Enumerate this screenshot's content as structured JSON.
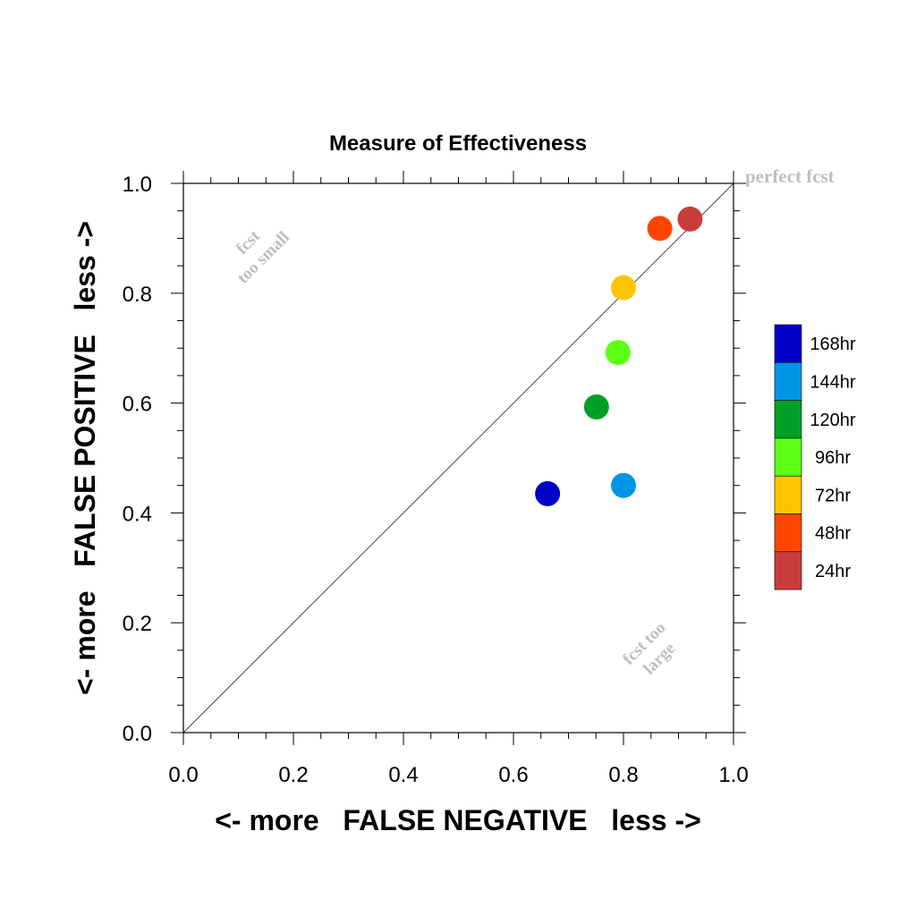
{
  "chart_data": {
    "type": "scatter",
    "title": "Measure of Effectiveness",
    "xlabel": "<- more   FALSE NEGATIVE   less ->",
    "ylabel": "<- more   FALSE POSITIVE   less ->",
    "xlim": [
      0.0,
      1.0
    ],
    "ylim": [
      0.0,
      1.0
    ],
    "xticks": [
      "0.0",
      "0.2",
      "0.4",
      "0.6",
      "0.8",
      "1.0"
    ],
    "yticks": [
      "0.0",
      "0.2",
      "0.4",
      "0.6",
      "0.8",
      "1.0"
    ],
    "reference_line": {
      "from": [
        0,
        0
      ],
      "to": [
        1,
        1
      ],
      "label": "perfect fcst"
    },
    "annotations": [
      {
        "lines": [
          "fcst",
          "too small"
        ],
        "at": [
          0.13,
          0.88
        ]
      },
      {
        "lines": [
          "fcst too",
          "large"
        ],
        "at": [
          0.85,
          0.15
        ]
      }
    ],
    "series": [
      {
        "name": "168hr",
        "x": 0.662,
        "y": 0.435,
        "color": "#0000C8"
      },
      {
        "name": "144hr",
        "x": 0.8,
        "y": 0.45,
        "color": "#0096E6"
      },
      {
        "name": "120hr",
        "x": 0.751,
        "y": 0.593,
        "color": "#00A028"
      },
      {
        "name": "96hr",
        "x": 0.79,
        "y": 0.692,
        "color": "#5AFF14"
      },
      {
        "name": "72hr",
        "x": 0.8,
        "y": 0.81,
        "color": "#FFC400"
      },
      {
        "name": "48hr",
        "x": 0.866,
        "y": 0.918,
        "color": "#FF4600"
      },
      {
        "name": "24hr",
        "x": 0.921,
        "y": 0.935,
        "color": "#C83C3C"
      }
    ],
    "legend_position": "right",
    "grid": false
  }
}
